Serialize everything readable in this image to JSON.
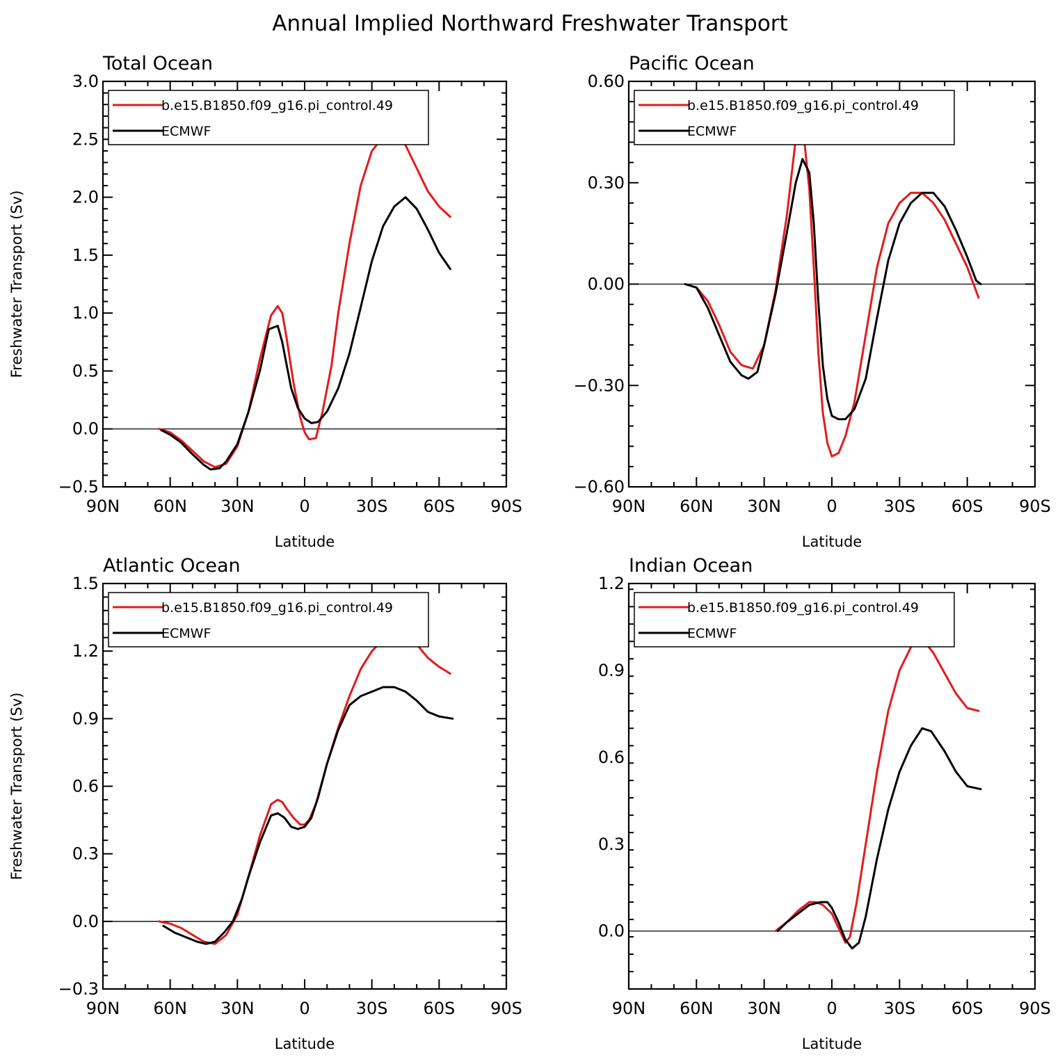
{
  "title": "Annual Implied Northward Freshwater Transport",
  "legend_labels": [
    "b.e15.B1850.f09_g16.pi_control.49",
    "ECMWF"
  ],
  "colors": {
    "model": "#e41a1c",
    "obs": "#000000",
    "frame": "#000000"
  },
  "chart_data": [
    {
      "type": "line",
      "title": "Total Ocean",
      "xlabel": "Latitude",
      "ylabel": "Freshwater Transport (Sv)",
      "xlim": [
        90,
        -90
      ],
      "x_ticks": [
        90,
        60,
        30,
        0,
        -30,
        -60,
        -90
      ],
      "x_tick_labels": [
        "90N",
        "60N",
        "30N",
        "0",
        "30S",
        "60S",
        "90S"
      ],
      "ylim": [
        -0.5,
        3.0
      ],
      "y_ticks": [
        -0.5,
        0.0,
        0.5,
        1.0,
        1.5,
        2.0,
        2.5,
        3.0
      ],
      "y_tick_labels": [
        "−0.5",
        "0.0",
        "0.5",
        "1.0",
        "1.5",
        "2.0",
        "2.5",
        "3.0"
      ],
      "legend_position": "top-left",
      "series": [
        {
          "name": "b.e15.B1850.f09_g16.pi_control.49",
          "color": "#e41a1c",
          "x": [
            65,
            60,
            55,
            50,
            45,
            40,
            35,
            30,
            25,
            20,
            15,
            12,
            10,
            8,
            5,
            2,
            0,
            -2,
            -5,
            -8,
            -12,
            -15,
            -20,
            -25,
            -30,
            -35,
            -40,
            -45,
            -50,
            -55,
            -60,
            -65
          ],
          "y": [
            0.0,
            -0.03,
            -0.1,
            -0.19,
            -0.28,
            -0.33,
            -0.3,
            -0.15,
            0.15,
            0.6,
            0.98,
            1.06,
            1.0,
            0.78,
            0.4,
            0.1,
            -0.03,
            -0.09,
            -0.08,
            0.15,
            0.55,
            1.0,
            1.6,
            2.1,
            2.4,
            2.52,
            2.56,
            2.45,
            2.25,
            2.05,
            1.92,
            1.83
          ]
        },
        {
          "name": "ECMWF",
          "color": "#000000",
          "x": [
            64,
            60,
            55,
            50,
            45,
            42,
            38,
            35,
            30,
            25,
            20,
            16,
            12,
            10,
            8,
            6,
            3,
            0,
            -3,
            -6,
            -10,
            -15,
            -20,
            -25,
            -30,
            -35,
            -40,
            -45,
            -50,
            -55,
            -60,
            -65
          ],
          "y": [
            -0.01,
            -0.05,
            -0.12,
            -0.22,
            -0.31,
            -0.35,
            -0.34,
            -0.28,
            -0.13,
            0.15,
            0.5,
            0.86,
            0.89,
            0.75,
            0.55,
            0.35,
            0.18,
            0.09,
            0.05,
            0.06,
            0.15,
            0.35,
            0.65,
            1.05,
            1.45,
            1.75,
            1.92,
            2.0,
            1.9,
            1.72,
            1.52,
            1.38
          ]
        }
      ]
    },
    {
      "type": "line",
      "title": "Pacific Ocean",
      "xlabel": "Latitude",
      "ylabel": "",
      "xlim": [
        90,
        -90
      ],
      "x_ticks": [
        90,
        60,
        30,
        0,
        -30,
        -60,
        -90
      ],
      "x_tick_labels": [
        "90N",
        "60N",
        "30N",
        "0",
        "30S",
        "60S",
        "90S"
      ],
      "ylim": [
        -0.6,
        0.6
      ],
      "y_ticks": [
        -0.6,
        -0.3,
        0.0,
        0.3,
        0.6
      ],
      "y_tick_labels": [
        "−0.60",
        "−0.30",
        "0.00",
        "0.30",
        "0.60"
      ],
      "legend_position": "top-left",
      "series": [
        {
          "name": "b.e15.B1850.f09_g16.pi_control.49",
          "color": "#e41a1c",
          "x": [
            65,
            60,
            55,
            50,
            45,
            40,
            35,
            30,
            25,
            20,
            16,
            14,
            12,
            10,
            8,
            6,
            4,
            2,
            0,
            -3,
            -6,
            -10,
            -15,
            -20,
            -25,
            -30,
            -35,
            -40,
            -45,
            -50,
            -55,
            -60,
            -65
          ],
          "y": [
            0.0,
            -0.01,
            -0.05,
            -0.12,
            -0.2,
            -0.24,
            -0.25,
            -0.18,
            -0.02,
            0.2,
            0.43,
            0.46,
            0.41,
            0.28,
            0.05,
            -0.2,
            -0.38,
            -0.47,
            -0.51,
            -0.5,
            -0.45,
            -0.35,
            -0.15,
            0.05,
            0.18,
            0.24,
            0.27,
            0.27,
            0.24,
            0.19,
            0.12,
            0.05,
            -0.04
          ]
        },
        {
          "name": "ECMWF",
          "color": "#000000",
          "x": [
            65,
            60,
            55,
            50,
            45,
            40,
            37,
            33,
            30,
            25,
            20,
            16,
            13,
            10,
            8,
            6,
            4,
            2,
            0,
            -3,
            -6,
            -10,
            -15,
            -20,
            -25,
            -30,
            -35,
            -40,
            -45,
            -50,
            -55,
            -60,
            -64,
            -66
          ],
          "y": [
            0.0,
            -0.01,
            -0.07,
            -0.15,
            -0.23,
            -0.27,
            -0.28,
            -0.26,
            -0.18,
            -0.03,
            0.15,
            0.3,
            0.37,
            0.33,
            0.18,
            -0.05,
            -0.24,
            -0.34,
            -0.39,
            -0.4,
            -0.4,
            -0.37,
            -0.28,
            -0.1,
            0.07,
            0.18,
            0.24,
            0.27,
            0.27,
            0.23,
            0.16,
            0.08,
            0.01,
            0.0
          ]
        }
      ]
    },
    {
      "type": "line",
      "title": "Atlantic Ocean",
      "xlabel": "Latitude",
      "ylabel": "Freshwater Transport (Sv)",
      "xlim": [
        90,
        -90
      ],
      "x_ticks": [
        90,
        60,
        30,
        0,
        -30,
        -60,
        -90
      ],
      "x_tick_labels": [
        "90N",
        "60N",
        "30N",
        "0",
        "30S",
        "60S",
        "90S"
      ],
      "ylim": [
        -0.3,
        1.5
      ],
      "y_ticks": [
        -0.3,
        0.0,
        0.3,
        0.6,
        0.9,
        1.2,
        1.5
      ],
      "y_tick_labels": [
        "−0.3",
        "0.0",
        "0.3",
        "0.6",
        "0.9",
        "1.2",
        "1.5"
      ],
      "legend_position": "top-left",
      "series": [
        {
          "name": "b.e15.B1850.f09_g16.pi_control.49",
          "color": "#e41a1c",
          "x": [
            65,
            60,
            55,
            50,
            45,
            40,
            35,
            30,
            25,
            20,
            15,
            12,
            10,
            8,
            5,
            2,
            0,
            -2,
            -5,
            -10,
            -15,
            -20,
            -25,
            -30,
            -35,
            -40,
            -45,
            -50,
            -55,
            -60,
            -65
          ],
          "y": [
            0.0,
            -0.01,
            -0.03,
            -0.06,
            -0.09,
            -0.1,
            -0.06,
            0.03,
            0.2,
            0.38,
            0.52,
            0.54,
            0.53,
            0.5,
            0.46,
            0.43,
            0.43,
            0.45,
            0.52,
            0.7,
            0.86,
            1.0,
            1.12,
            1.2,
            1.25,
            1.29,
            1.28,
            1.23,
            1.17,
            1.13,
            1.1
          ]
        },
        {
          "name": "ECMWF",
          "color": "#000000",
          "x": [
            63,
            58,
            53,
            48,
            44,
            40,
            36,
            32,
            28,
            25,
            20,
            15,
            12,
            9,
            6,
            3,
            0,
            -3,
            -6,
            -10,
            -15,
            -20,
            -25,
            -30,
            -35,
            -40,
            -45,
            -50,
            -55,
            -60,
            -66
          ],
          "y": [
            -0.02,
            -0.05,
            -0.07,
            -0.09,
            -0.1,
            -0.09,
            -0.05,
            0.0,
            0.1,
            0.2,
            0.35,
            0.47,
            0.48,
            0.46,
            0.42,
            0.41,
            0.42,
            0.46,
            0.55,
            0.7,
            0.85,
            0.96,
            1.0,
            1.02,
            1.04,
            1.04,
            1.02,
            0.98,
            0.93,
            0.91,
            0.9
          ]
        }
      ]
    },
    {
      "type": "line",
      "title": "Indian Ocean",
      "xlabel": "Latitude",
      "ylabel": "",
      "xlim": [
        90,
        -90
      ],
      "x_ticks": [
        90,
        60,
        30,
        0,
        -30,
        -60,
        -90
      ],
      "x_tick_labels": [
        "90N",
        "60N",
        "30N",
        "0",
        "30S",
        "60S",
        "90S"
      ],
      "ylim": [
        -0.2,
        1.2
      ],
      "y_ticks": [
        0.0,
        0.3,
        0.6,
        0.9,
        1.2
      ],
      "y_tick_labels": [
        "0.0",
        "0.3",
        "0.6",
        "0.9",
        "1.2"
      ],
      "legend_position": "top-left",
      "series": [
        {
          "name": "b.e15.B1850.f09_g16.pi_control.49",
          "color": "#e41a1c",
          "x": [
            25,
            20,
            15,
            10,
            7,
            4,
            0,
            -3,
            -6,
            -8,
            -11,
            -15,
            -20,
            -25,
            -30,
            -35,
            -40,
            -45,
            -50,
            -55,
            -60,
            -65
          ],
          "y": [
            0.0,
            0.03,
            0.07,
            0.1,
            0.1,
            0.09,
            0.06,
            0.01,
            -0.04,
            -0.02,
            0.1,
            0.3,
            0.55,
            0.76,
            0.9,
            0.98,
            1.01,
            0.96,
            0.89,
            0.82,
            0.77,
            0.76
          ]
        },
        {
          "name": "ECMWF",
          "color": "#000000",
          "x": [
            24,
            20,
            15,
            10,
            5,
            2,
            0,
            -3,
            -6,
            -9,
            -12,
            -15,
            -20,
            -25,
            -30,
            -35,
            -40,
            -44,
            -50,
            -55,
            -60,
            -66
          ],
          "y": [
            0.0,
            0.03,
            0.06,
            0.09,
            0.1,
            0.1,
            0.08,
            0.03,
            -0.03,
            -0.06,
            -0.04,
            0.05,
            0.25,
            0.42,
            0.55,
            0.64,
            0.7,
            0.69,
            0.62,
            0.55,
            0.5,
            0.49
          ]
        }
      ]
    }
  ]
}
